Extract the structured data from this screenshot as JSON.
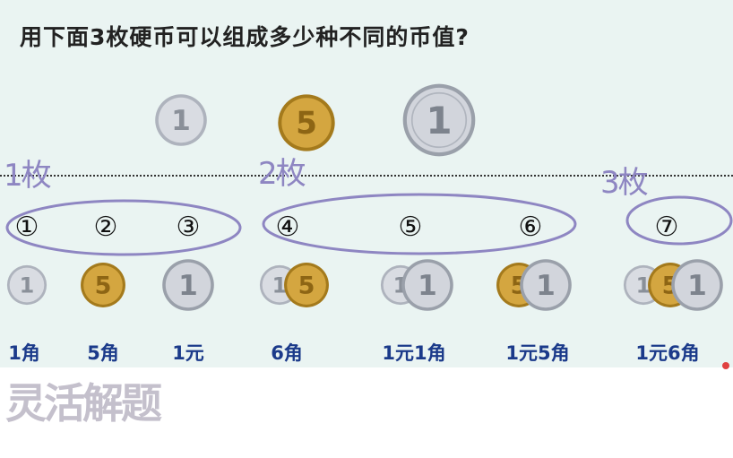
{
  "title": "用下面3枚硬币可以组成多少种不同的币值?",
  "colors": {
    "silver": "#c8ccd4",
    "gold": "#c89a2c",
    "handwriting": "#8e86c2",
    "value_text": "#1b3a8a"
  },
  "top_coins": [
    {
      "label": "1",
      "metal": "silver",
      "name": "one-jiao-coin"
    },
    {
      "label": "5",
      "metal": "gold",
      "name": "five-jiao-coin"
    },
    {
      "label": "1",
      "metal": "silver",
      "name": "one-yuan-coin"
    }
  ],
  "handwritten": {
    "group1": "1枚",
    "group2": "2枚",
    "group3": "3枚"
  },
  "options": [
    {
      "num": "①",
      "value": "1角",
      "coins": [
        "1s"
      ]
    },
    {
      "num": "②",
      "value": "5角",
      "coins": [
        "5g"
      ]
    },
    {
      "num": "③",
      "value": "1元",
      "coins": [
        "1L"
      ]
    },
    {
      "num": "④",
      "value": "6角",
      "coins": [
        "1s",
        "5g"
      ]
    },
    {
      "num": "⑤",
      "value": "1元1角",
      "coins": [
        "1s",
        "1L"
      ]
    },
    {
      "num": "⑥",
      "value": "1元5角",
      "coins": [
        "5g",
        "1L"
      ]
    },
    {
      "num": "⑦",
      "value": "1元6角",
      "coins": [
        "1s",
        "5g",
        "1L"
      ]
    }
  ],
  "watermark": "灵活解题"
}
